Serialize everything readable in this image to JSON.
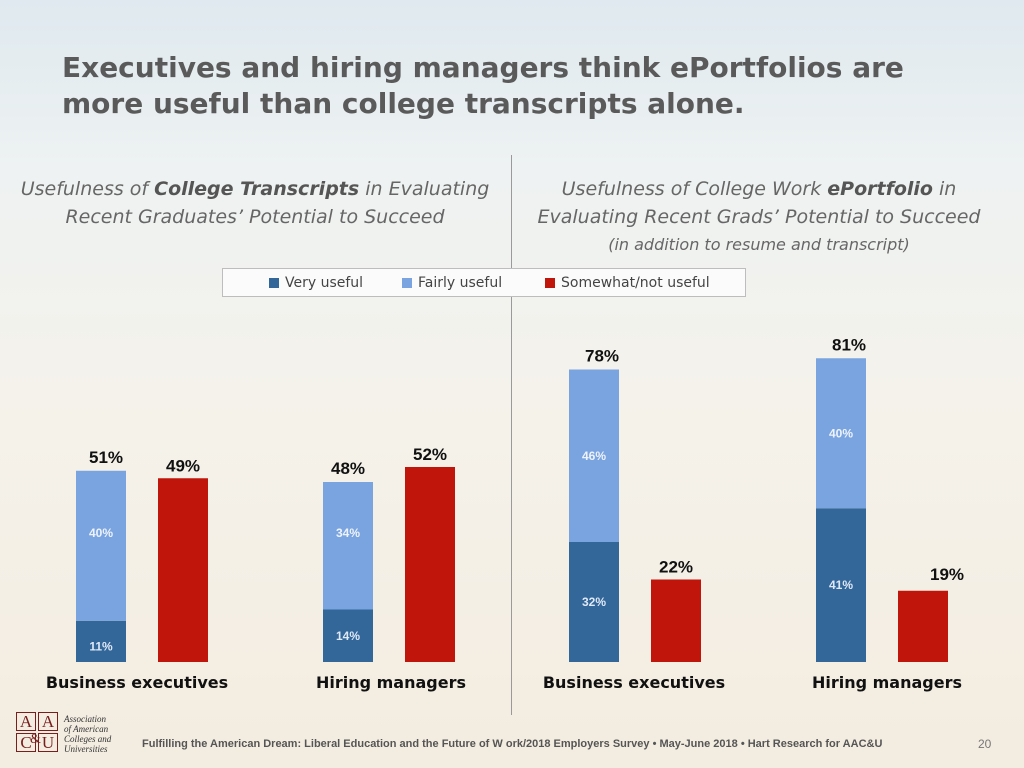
{
  "title": "Executives and hiring managers think ePortfolios are more useful than college transcripts alone.",
  "left_subtitle": {
    "line1_pre": "Usefulness of ",
    "line1_bold": "College Transcripts",
    "line1_post": " in Evaluating",
    "line2": "Recent Graduates’ Potential to Succeed"
  },
  "right_subtitle": {
    "line1_pre": "Usefulness of College Work ",
    "line1_bold": "ePortfolio",
    "line1_post": "  in",
    "line2": "Evaluating Recent Grads’ Potential to Succeed",
    "line3": "(in addition to resume and transcript)"
  },
  "legend": [
    "Very useful",
    "Fairly useful",
    "Somewhat/not useful"
  ],
  "colors": {
    "very_useful": "#336699",
    "fairly_useful": "#7aa4e0",
    "not_useful": "#c0150a"
  },
  "chart_data": [
    {
      "type": "bar",
      "stacked": true,
      "title": "Usefulness of College Transcripts in Evaluating Recent Graduates’ Potential to Succeed",
      "categories": [
        "Business executives",
        "Hiring managers"
      ],
      "series": [
        {
          "name": "Very useful",
          "values": [
            11,
            14
          ]
        },
        {
          "name": "Fairly useful",
          "values": [
            40,
            34
          ]
        },
        {
          "name": "Somewhat/not useful",
          "values": [
            49,
            52
          ]
        }
      ],
      "useful_totals": [
        51,
        48
      ]
    },
    {
      "type": "bar",
      "stacked": true,
      "title": "Usefulness of College Work ePortfolio in Evaluating Recent Grads’ Potential to Succeed (in addition to resume and transcript)",
      "categories": [
        "Business executives",
        "Hiring managers"
      ],
      "series": [
        {
          "name": "Very useful",
          "values": [
            32,
            41
          ]
        },
        {
          "name": "Fairly useful",
          "values": [
            46,
            40
          ]
        },
        {
          "name": "Somewhat/not useful",
          "values": [
            22,
            19
          ]
        }
      ],
      "useful_totals": [
        78,
        81
      ]
    }
  ],
  "footer": "Fulfilling the American Dream: Liberal Education and the Future of W ork/2018 Employers Survey • May-June 2018 • Hart Research for AAC&U",
  "page_number": "20",
  "logo": {
    "letters": [
      "A",
      "A",
      "C",
      "U"
    ],
    "amp": "&",
    "text": [
      "Association",
      "of American",
      "Colleges and",
      "Universities"
    ]
  }
}
